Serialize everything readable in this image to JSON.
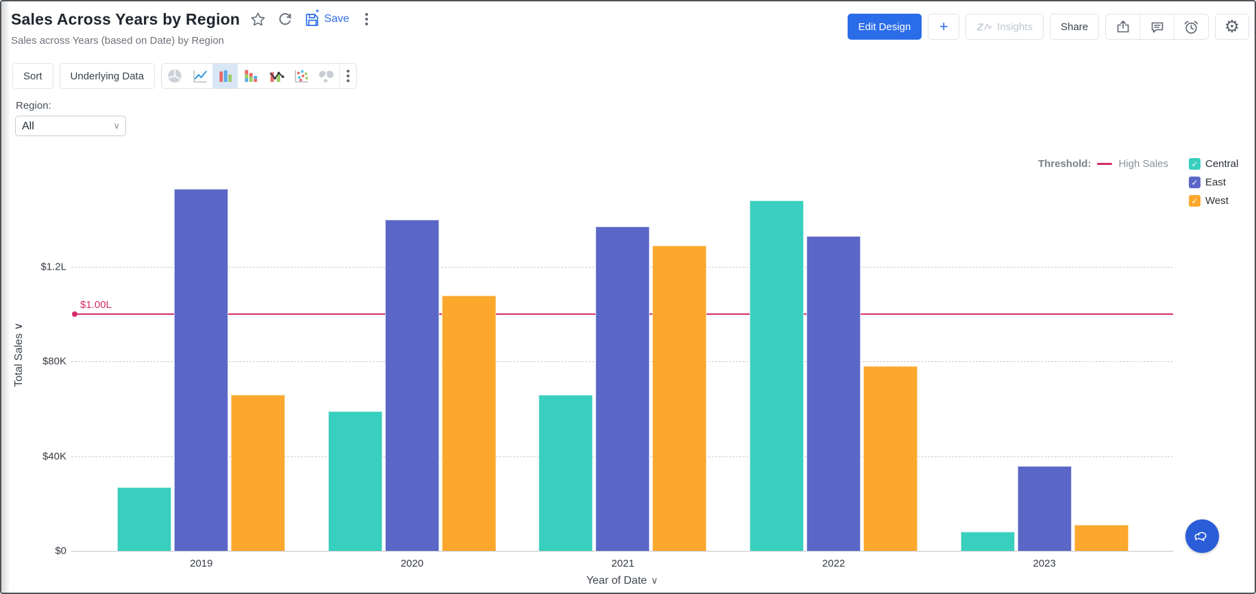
{
  "header": {
    "title": "Sales Across Years by Region",
    "subtitle": "Sales across Years (based on Date) by Region",
    "save_label": "Save",
    "edit_design": "Edit Design",
    "plus": "+",
    "insights": "Insights",
    "share": "Share"
  },
  "toolbar": {
    "sort": "Sort",
    "underlying_data": "Underlying Data",
    "chart_types": [
      {
        "icon": "pie-chart-icon",
        "selected": false
      },
      {
        "icon": "line-chart-icon",
        "selected": false
      },
      {
        "icon": "bar-chart-icon",
        "selected": true
      },
      {
        "icon": "stacked-bar-chart-icon",
        "selected": false
      },
      {
        "icon": "combo-chart-icon",
        "selected": false
      },
      {
        "icon": "scatter-chart-icon",
        "selected": false
      },
      {
        "icon": "map-chart-icon",
        "selected": false
      }
    ]
  },
  "filter": {
    "label": "Region:",
    "value": "All"
  },
  "chart_data": {
    "type": "bar",
    "title": "Sales Across Years by Region",
    "categories": [
      "2019",
      "2020",
      "2021",
      "2022",
      "2023"
    ],
    "series": [
      {
        "name": "Central",
        "color": "#38CFBE",
        "edge": "#bdece6",
        "values": [
          27000,
          59000,
          66000,
          148000,
          8000
        ]
      },
      {
        "name": "East",
        "color": "#5A67C6",
        "edge": "#ced3f0",
        "values": [
          153000,
          140000,
          137000,
          133000,
          36000
        ]
      },
      {
        "name": "West",
        "color": "#FBA82C",
        "edge": "#fdd9a3",
        "values": [
          66000,
          108000,
          129000,
          78000,
          11000
        ]
      }
    ],
    "xlabel": "Year of Date",
    "ylabel": "Total Sales",
    "ylim": [
      0,
      162000
    ],
    "grid": "dashed-horizontal",
    "legend_position": "right",
    "yticks": [
      {
        "value": 0,
        "label": "$0"
      },
      {
        "value": 40000,
        "label": "$40K"
      },
      {
        "value": 80000,
        "label": "$80K"
      },
      {
        "value": 120000,
        "label": "$1.2L"
      }
    ],
    "threshold": {
      "title": "Threshold:",
      "name": "High Sales",
      "value": 100000,
      "label": "$1.00L",
      "color": "#D42A68"
    }
  },
  "colors": {
    "accent_blue": "#2B6CE8",
    "zia_fab_blue": "#2B5DD8",
    "threshold": "#D42A68"
  }
}
